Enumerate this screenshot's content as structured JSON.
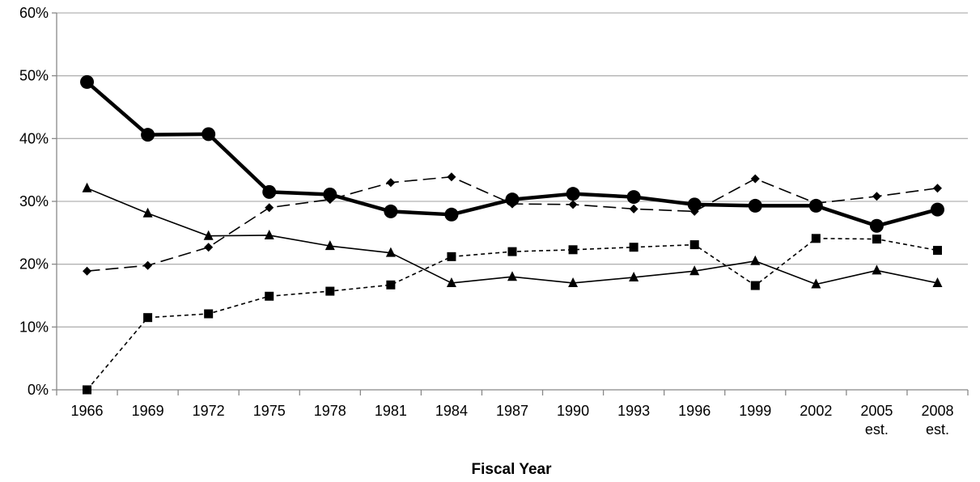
{
  "chart_data": {
    "type": "line",
    "title": "",
    "xlabel": "Fiscal Year",
    "ylabel": "",
    "ylim": [
      0,
      60
    ],
    "y_ticks": [
      0,
      10,
      20,
      30,
      40,
      50,
      60
    ],
    "y_tick_suffix": "%",
    "grid": "horizontal",
    "legend": "none",
    "categories": [
      [
        "1966"
      ],
      [
        "1969"
      ],
      [
        "1972"
      ],
      [
        "1975"
      ],
      [
        "1978"
      ],
      [
        "1981"
      ],
      [
        "1984"
      ],
      [
        "1987"
      ],
      [
        "1990"
      ],
      [
        "1993"
      ],
      [
        "1996"
      ],
      [
        "1999"
      ],
      [
        "2002"
      ],
      [
        "2005",
        "est."
      ],
      [
        "2008",
        "est."
      ]
    ],
    "series": [
      {
        "marker": "circle",
        "line_style": "solid-thick",
        "color": "#000000",
        "values": [
          49.0,
          40.6,
          40.7,
          31.5,
          31.1,
          28.4,
          27.9,
          30.3,
          31.2,
          30.7,
          29.5,
          29.3,
          29.3,
          26.1,
          28.7
        ]
      },
      {
        "marker": "diamond",
        "line_style": "long-dash",
        "color": "#000000",
        "values": [
          18.9,
          19.8,
          22.7,
          29.0,
          30.3,
          33.0,
          33.9,
          29.6,
          29.5,
          28.8,
          28.4,
          33.6,
          29.7,
          30.8,
          32.1
        ]
      },
      {
        "marker": "triangle",
        "line_style": "solid-thin",
        "color": "#000000",
        "values": [
          32.1,
          28.1,
          24.5,
          24.6,
          22.9,
          21.8,
          17.0,
          18.0,
          17.0,
          17.9,
          18.9,
          20.5,
          16.8,
          19.0,
          17.0
        ]
      },
      {
        "marker": "square",
        "line_style": "short-dash",
        "color": "#000000",
        "values": [
          0.0,
          11.5,
          12.1,
          14.9,
          15.7,
          16.7,
          21.2,
          22.0,
          22.3,
          22.7,
          23.1,
          16.6,
          24.1,
          24.0,
          22.2
        ]
      }
    ]
  }
}
